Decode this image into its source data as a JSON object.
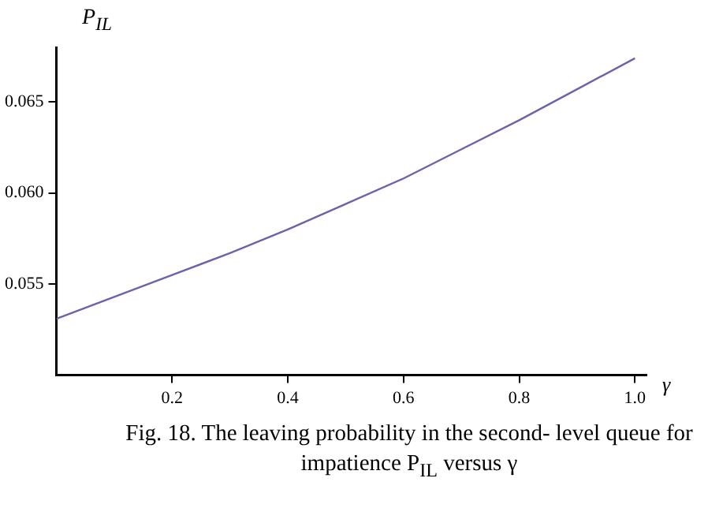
{
  "chart_data": {
    "type": "line",
    "xlabel": "γ",
    "ylabel": "P$_{IL}$",
    "x": [
      0,
      0.1,
      0.2,
      0.3,
      0.4,
      0.5,
      0.6,
      0.7,
      0.8,
      0.9,
      1.0
    ],
    "series": [
      {
        "color": "#6a64a8",
        "values": [
          0.0531,
          0.0543,
          0.0555,
          0.0567,
          0.058,
          0.0594,
          0.0608,
          0.0624,
          0.064,
          0.0657,
          0.0674
        ]
      }
    ],
    "xlim": [
      0,
      1.02
    ],
    "ylim": [
      0.05,
      0.068
    ],
    "xticks": [
      {
        "value": 0.2,
        "label": "0.2"
      },
      {
        "value": 0.4,
        "label": "0.4"
      },
      {
        "value": 0.6,
        "label": "0.6"
      },
      {
        "value": 0.8,
        "label": "0.8"
      },
      {
        "value": 1.0,
        "label": "1.0"
      }
    ],
    "yticks": [
      {
        "value": 0.055,
        "label": "0.055"
      },
      {
        "value": 0.06,
        "label": "0.060"
      },
      {
        "value": 0.065,
        "label": "0.065"
      }
    ],
    "grid": false,
    "legend": false,
    "marker": "none",
    "line_style": "solid",
    "annotations": [
      "Fig. 18. The leaving probability in the second- level queue for impatience P$_{IL}$ versus γ"
    ]
  }
}
